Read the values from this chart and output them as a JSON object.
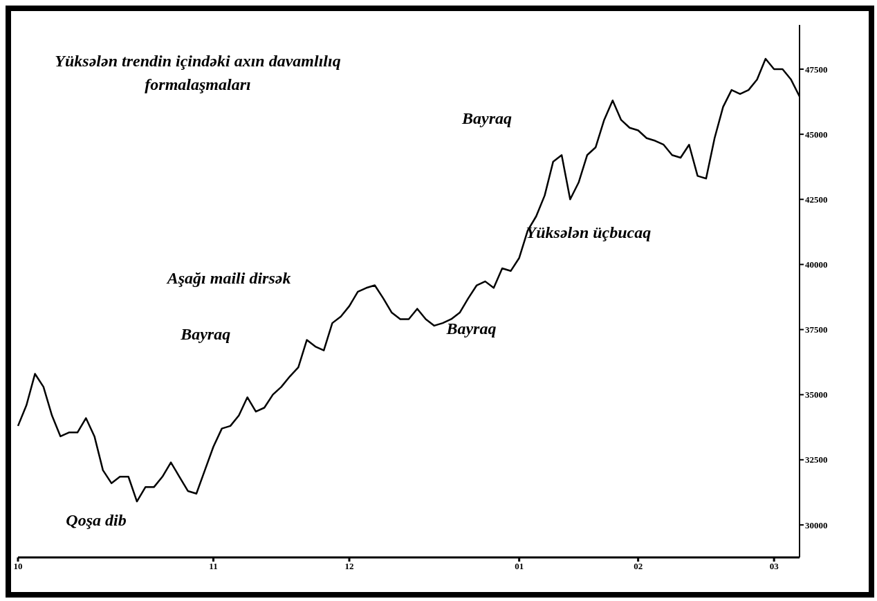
{
  "chart_data": {
    "type": "line",
    "title": "Yüksələn trendin içindəki axın davamlılıq formalaşmaları",
    "categories": [
      "10",
      null,
      null,
      null,
      null,
      null,
      null,
      null,
      null,
      null,
      null,
      null,
      null,
      null,
      null,
      null,
      null,
      null,
      null,
      null,
      null,
      null,
      null,
      "11",
      null,
      null,
      null,
      null,
      null,
      null,
      null,
      null,
      null,
      null,
      null,
      null,
      null,
      null,
      null,
      "12",
      null,
      null,
      null,
      null,
      null,
      null,
      null,
      null,
      null,
      null,
      null,
      null,
      null,
      null,
      null,
      null,
      null,
      null,
      null,
      "01",
      null,
      null,
      null,
      null,
      null,
      null,
      null,
      null,
      null,
      null,
      null,
      null,
      null,
      "02",
      null,
      null,
      null,
      null,
      null,
      null,
      null,
      null,
      null,
      null,
      null,
      null,
      null,
      null,
      null,
      "03",
      null,
      null,
      null
    ],
    "series": [
      {
        "color": "#000000",
        "values": [
          33800,
          34600,
          35800,
          35300,
          34200,
          33400,
          33550,
          33550,
          34100,
          33400,
          32100,
          31600,
          31850,
          31850,
          30900,
          31450,
          31450,
          31850,
          32400,
          31850,
          31300,
          31200,
          32100,
          33000,
          33700,
          33800,
          34200,
          34900,
          34350,
          34500,
          35000,
          35300,
          35700,
          36050,
          37100,
          36850,
          36700,
          37750,
          38000,
          38400,
          38950,
          39100,
          39200,
          38700,
          38150,
          37900,
          37900,
          38300,
          37900,
          37650,
          37750,
          37900,
          38150,
          38700,
          39200,
          39350,
          39100,
          39850,
          39750,
          40250,
          41300,
          41850,
          42650,
          43950,
          44200,
          42500,
          43150,
          44200,
          44500,
          45550,
          46300,
          45550,
          45250,
          45150,
          44850,
          44750,
          44600,
          44200,
          44100,
          44600,
          43400,
          43300,
          44850,
          46050,
          46700,
          46550,
          46700,
          47100,
          47900,
          47500,
          47500,
          47100,
          46450
        ]
      }
    ],
    "ylim": [
      28750,
      49200
    ],
    "yticks": [
      30000,
      32500,
      35000,
      37500,
      40000,
      42500,
      45000,
      47500
    ],
    "grid": false,
    "legend": false,
    "marker": "none",
    "line_style": "solid",
    "annotations": [
      "Qoşa dib",
      "Bayraq",
      "Aşağı maili dirsək",
      "Bayraq",
      "Bayraq",
      "Yüksələn üçbucaq"
    ]
  }
}
